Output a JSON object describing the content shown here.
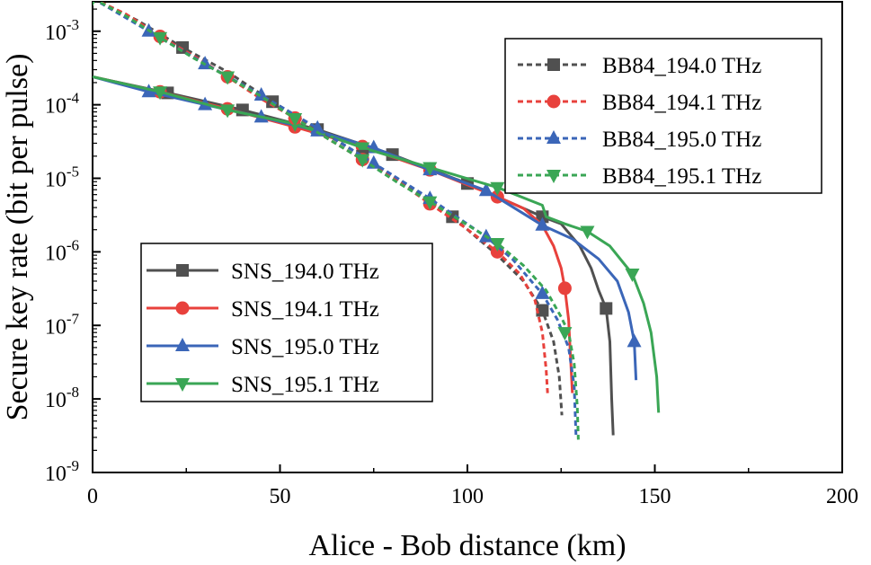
{
  "chart_data": {
    "type": "line",
    "xlabel": "Alice - Bob distance (km)",
    "ylabel": "Secure key rate (bit per pulse)",
    "xlim": [
      0,
      200
    ],
    "ylim_log10": [
      -9,
      -2.6
    ],
    "yscale": "log",
    "x_ticks": [
      {
        "value": 0,
        "label": "0"
      },
      {
        "value": 50,
        "label": "50"
      },
      {
        "value": 100,
        "label": "100"
      },
      {
        "value": 150,
        "label": "150"
      },
      {
        "value": 200,
        "label": "200"
      }
    ],
    "y_ticks": [
      {
        "exp": -9,
        "label": "10",
        "sup": "-9"
      },
      {
        "exp": -8,
        "label": "10",
        "sup": "-8"
      },
      {
        "exp": -7,
        "label": "10",
        "sup": "-7"
      },
      {
        "exp": -6,
        "label": "10",
        "sup": "-6"
      },
      {
        "exp": -5,
        "label": "10",
        "sup": "-5"
      },
      {
        "exp": -4,
        "label": "10",
        "sup": "-4"
      },
      {
        "exp": -3,
        "label": "10",
        "sup": "-3"
      }
    ],
    "legend_top_right": {
      "placement": "top-right",
      "entries": [
        "BB84_194.0 THz",
        "BB84_194.1 THz",
        "BB84_195.0 THz",
        "BB84_195.1 THz"
      ]
    },
    "legend_middle_left": {
      "placement": "middle-left",
      "entries": [
        "SNS_194.0 THz",
        "SNS_194.1 THz",
        "SNS_195.0 THz",
        "SNS_195.1 THz"
      ]
    },
    "series": [
      {
        "name": "SNS_194.0 THz",
        "color": "#505050",
        "dash": "solid",
        "marker": "square",
        "points": [
          [
            0,
            0.00024
          ],
          [
            20,
            0.000145
          ],
          [
            40,
            8.5e-05
          ],
          [
            60,
            4.6e-05
          ],
          [
            80,
            2.1e-05
          ],
          [
            100,
            8.5e-06
          ],
          [
            120,
            3e-06
          ],
          [
            125,
            2.4e-06
          ],
          [
            130,
            1.2e-06
          ],
          [
            133,
            6e-07
          ],
          [
            135,
            3e-07
          ],
          [
            137,
            1.7e-07
          ],
          [
            138,
            6e-08
          ],
          [
            138.5,
            1e-08
          ],
          [
            138.9,
            3.2e-09
          ]
        ],
        "markers": [
          [
            20,
            0.000145
          ],
          [
            40,
            8.5e-05
          ],
          [
            60,
            4.6e-05
          ],
          [
            80,
            2.1e-05
          ],
          [
            100,
            8.5e-06
          ],
          [
            120,
            3e-06
          ],
          [
            137,
            1.7e-07
          ]
        ]
      },
      {
        "name": "SNS_194.1 THz",
        "color": "#e8413c",
        "dash": "solid",
        "marker": "circle",
        "points": [
          [
            0,
            0.00024
          ],
          [
            18,
            0.00015
          ],
          [
            36,
            8.8e-05
          ],
          [
            54,
            5e-05
          ],
          [
            72,
            2.7e-05
          ],
          [
            90,
            1.3e-05
          ],
          [
            108,
            5.6e-06
          ],
          [
            115,
            3.9e-06
          ],
          [
            120,
            2.3e-06
          ],
          [
            123,
            1.2e-06
          ],
          [
            125,
            6e-07
          ],
          [
            126,
            3.2e-07
          ],
          [
            127,
            1.2e-07
          ],
          [
            127.6,
            3e-08
          ],
          [
            128,
            1.2e-08
          ]
        ],
        "markers": [
          [
            18,
            0.00015
          ],
          [
            36,
            8.8e-05
          ],
          [
            54,
            5e-05
          ],
          [
            72,
            2.7e-05
          ],
          [
            90,
            1.3e-05
          ],
          [
            108,
            5.6e-06
          ],
          [
            126,
            3.2e-07
          ]
        ]
      },
      {
        "name": "SNS_195.0 THz",
        "color": "#3b66b8",
        "dash": "solid",
        "marker": "triangle-up",
        "points": [
          [
            0,
            0.00024
          ],
          [
            15,
            0.00015
          ],
          [
            30,
            0.0001
          ],
          [
            45,
            6.8e-05
          ],
          [
            60,
            4.4e-05
          ],
          [
            75,
            2.6e-05
          ],
          [
            90,
            1.3e-05
          ],
          [
            105,
            6.8e-06
          ],
          [
            120,
            2.3e-06
          ],
          [
            128,
            1.5e-06
          ],
          [
            135,
            8e-07
          ],
          [
            140,
            4e-07
          ],
          [
            143,
            1.5e-07
          ],
          [
            144.5,
            6e-08
          ],
          [
            145,
            1.8e-08
          ]
        ],
        "markers": [
          [
            15,
            0.00015
          ],
          [
            30,
            0.0001
          ],
          [
            45,
            6.8e-05
          ],
          [
            60,
            4.4e-05
          ],
          [
            75,
            2.6e-05
          ],
          [
            90,
            1.3e-05
          ],
          [
            105,
            6.8e-06
          ],
          [
            120,
            2.3e-06
          ],
          [
            144.5,
            6e-08
          ]
        ]
      },
      {
        "name": "SNS_195.1 THz",
        "color": "#3aa655",
        "dash": "solid",
        "marker": "triangle-down",
        "points": [
          [
            0,
            0.00024
          ],
          [
            18,
            0.00015
          ],
          [
            36,
            8.5e-05
          ],
          [
            54,
            5.5e-05
          ],
          [
            72,
            2.6e-05
          ],
          [
            90,
            1.4e-05
          ],
          [
            108,
            7.5e-06
          ],
          [
            120,
            4.3e-06
          ],
          [
            121,
            3e-06
          ],
          [
            126,
            2.4e-06
          ],
          [
            132,
            1.9e-06
          ],
          [
            138,
            1.2e-06
          ],
          [
            144,
            5e-07
          ],
          [
            147,
            2e-07
          ],
          [
            149,
            8e-08
          ],
          [
            150.5,
            2e-08
          ],
          [
            151,
            6.5e-09
          ]
        ],
        "markers": [
          [
            18,
            0.00015
          ],
          [
            36,
            8.5e-05
          ],
          [
            54,
            5.5e-05
          ],
          [
            72,
            2.6e-05
          ],
          [
            90,
            1.4e-05
          ],
          [
            108,
            7.5e-06
          ],
          [
            132,
            1.9e-06
          ],
          [
            144,
            5e-07
          ]
        ]
      },
      {
        "name": "BB84_194.0 THz",
        "color": "#505050",
        "dash": "dashed",
        "marker": "square",
        "points": [
          [
            0,
            0.0028
          ],
          [
            12,
            0.0014
          ],
          [
            24,
            0.0006
          ],
          [
            36,
            0.00028
          ],
          [
            48,
            0.00011
          ],
          [
            60,
            4.7e-05
          ],
          [
            72,
            2e-05
          ],
          [
            84,
            8e-06
          ],
          [
            96,
            3e-06
          ],
          [
            108,
            9e-07
          ],
          [
            115,
            4e-07
          ],
          [
            120,
            1.6e-07
          ],
          [
            123,
            6e-08
          ],
          [
            124.5,
            2e-08
          ],
          [
            125.2,
            6e-09
          ]
        ],
        "markers": [
          [
            24,
            0.0006
          ],
          [
            48,
            0.00011
          ],
          [
            72,
            2e-05
          ],
          [
            96,
            3e-06
          ],
          [
            120,
            1.6e-07
          ]
        ]
      },
      {
        "name": "BB84_194.1 THz",
        "color": "#e8413c",
        "dash": "dashed",
        "marker": "circle",
        "points": [
          [
            0,
            0.0028
          ],
          [
            9,
            0.0017
          ],
          [
            18,
            0.00085
          ],
          [
            27,
            0.00046
          ],
          [
            36,
            0.00024
          ],
          [
            45,
            0.00012
          ],
          [
            54,
            6.6e-05
          ],
          [
            63,
            3.4e-05
          ],
          [
            72,
            1.8e-05
          ],
          [
            81,
            9.5e-06
          ],
          [
            90,
            4.5e-06
          ],
          [
            99,
            2.2e-06
          ],
          [
            108,
            1e-06
          ],
          [
            114,
            5e-07
          ],
          [
            118,
            2.2e-07
          ],
          [
            120,
            8e-08
          ],
          [
            121,
            2.5e-08
          ],
          [
            121.4,
            1.2e-08
          ]
        ],
        "markers": [
          [
            18,
            0.00085
          ],
          [
            36,
            0.00024
          ],
          [
            54,
            6.6e-05
          ],
          [
            72,
            1.8e-05
          ],
          [
            90,
            4.5e-06
          ],
          [
            108,
            1e-06
          ]
        ]
      },
      {
        "name": "BB84_195.0 THz",
        "color": "#3b66b8",
        "dash": "dashed",
        "marker": "triangle-up",
        "points": [
          [
            0,
            0.0028
          ],
          [
            15,
            0.001
          ],
          [
            30,
            0.00036
          ],
          [
            45,
            0.000135
          ],
          [
            60,
            4.8e-05
          ],
          [
            75,
            1.6e-05
          ],
          [
            90,
            5.3e-06
          ],
          [
            105,
            1.6e-06
          ],
          [
            112,
            8e-07
          ],
          [
            118,
            3.5e-07
          ],
          [
            120,
            2.7e-07
          ],
          [
            124,
            1.2e-07
          ],
          [
            127,
            5e-08
          ],
          [
            128.5,
            1.5e-08
          ],
          [
            129,
            3e-09
          ]
        ],
        "markers": [
          [
            15,
            0.001
          ],
          [
            30,
            0.00036
          ],
          [
            45,
            0.000135
          ],
          [
            60,
            4.8e-05
          ],
          [
            75,
            1.6e-05
          ],
          [
            90,
            5.3e-06
          ],
          [
            105,
            1.6e-06
          ],
          [
            120,
            2.7e-07
          ]
        ]
      },
      {
        "name": "BB84_195.1 THz",
        "color": "#3aa655",
        "dash": "dashed",
        "marker": "triangle-down",
        "points": [
          [
            0,
            0.0028
          ],
          [
            9,
            0.0016
          ],
          [
            18,
            0.00082
          ],
          [
            27,
            0.00043
          ],
          [
            36,
            0.00024
          ],
          [
            45,
            0.00013
          ],
          [
            54,
            6.5e-05
          ],
          [
            63,
            3.4e-05
          ],
          [
            72,
            1.8e-05
          ],
          [
            81,
            9e-06
          ],
          [
            90,
            4.8e-06
          ],
          [
            99,
            2.5e-06
          ],
          [
            108,
            1.3e-06
          ],
          [
            115,
            6.5e-07
          ],
          [
            121,
            3e-07
          ],
          [
            125,
            1.3e-07
          ],
          [
            127,
            8e-08
          ],
          [
            128.5,
            3e-08
          ],
          [
            129.3,
            8e-09
          ],
          [
            129.6,
            2.8e-09
          ]
        ],
        "markers": [
          [
            0,
            0.0028
          ],
          [
            18,
            0.00082
          ],
          [
            36,
            0.00024
          ],
          [
            54,
            6.5e-05
          ],
          [
            72,
            1.8e-05
          ],
          [
            90,
            4.8e-06
          ],
          [
            108,
            1.3e-06
          ],
          [
            126,
            8e-08
          ]
        ]
      }
    ]
  }
}
